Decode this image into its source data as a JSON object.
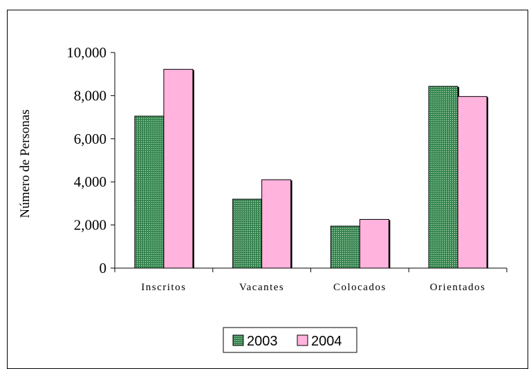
{
  "chart_data": {
    "type": "bar",
    "categories": [
      "Inscritos",
      "Vacantes",
      "Colocados",
      "Orientados"
    ],
    "series": [
      {
        "name": "2003",
        "values": [
          7050,
          3200,
          1950,
          8430
        ],
        "color": "#3f8f5a"
      },
      {
        "name": "2004",
        "values": [
          9220,
          4100,
          2260,
          7960
        ],
        "color": "#ffb3dd"
      }
    ],
    "ylabel": "Número de Personas",
    "ylim": [
      0,
      10000
    ],
    "yticks": [
      0,
      2000,
      4000,
      6000,
      8000,
      10000
    ],
    "ytick_labels": [
      "0",
      "2,000",
      "4,000",
      "6,000",
      "8,000",
      "10,000"
    ],
    "grid": false,
    "legend_position": "bottom"
  }
}
